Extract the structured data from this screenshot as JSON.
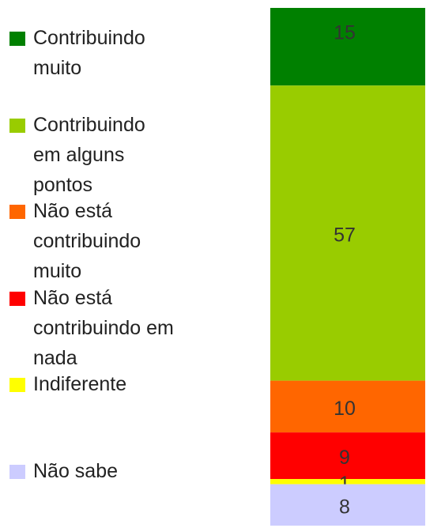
{
  "chart_data": {
    "type": "stacked_bar",
    "categories": [
      null
    ],
    "series": [
      {
        "name": "Contribuindo muito",
        "color": "#008000",
        "values": [
          15
        ]
      },
      {
        "name": "Contribuindo em alguns pontos",
        "color": "#99cc00",
        "values": [
          57
        ]
      },
      {
        "name": "Não está contribuindo muito",
        "color": "#ff6600",
        "values": [
          10
        ]
      },
      {
        "name": "Não está contribuindo em nada",
        "color": "#ff0000",
        "values": [
          9
        ]
      },
      {
        "name": "Indiferente",
        "color": "#ffff00",
        "values": [
          1
        ]
      },
      {
        "name": "Não sabe",
        "color": "#ccccff",
        "values": [
          8
        ]
      }
    ],
    "ylim": [
      0,
      100
    ],
    "legend": "left"
  }
}
